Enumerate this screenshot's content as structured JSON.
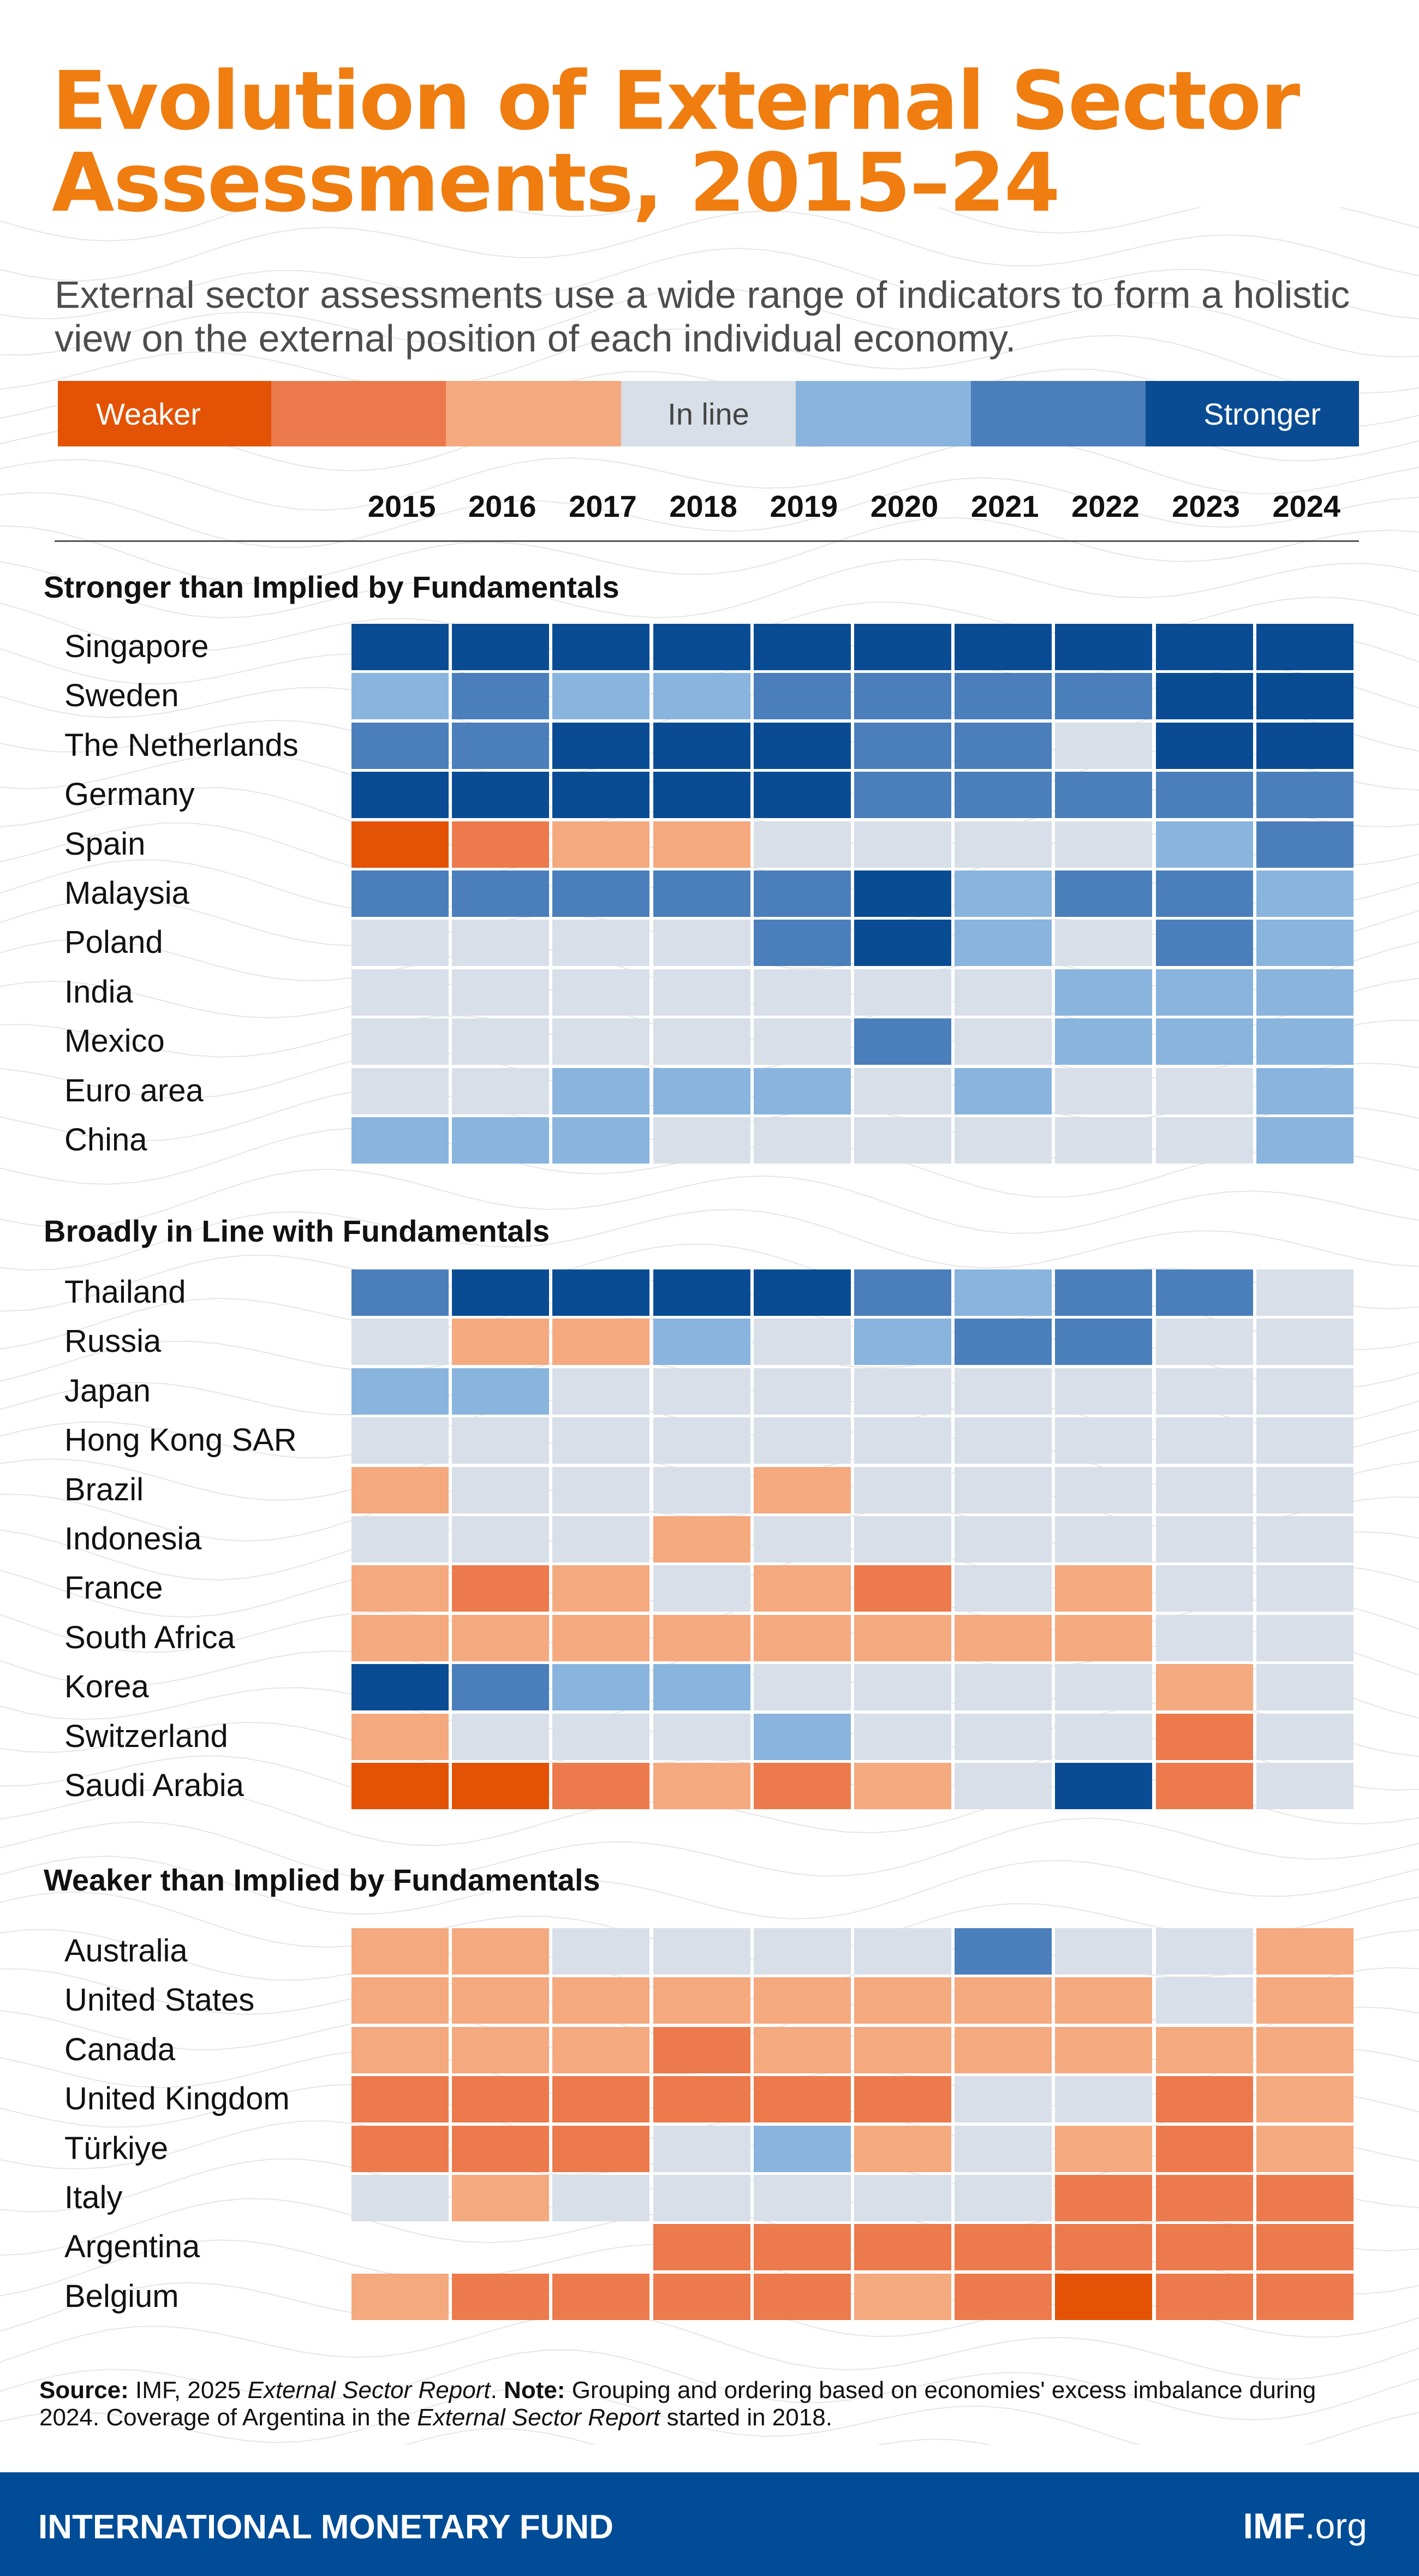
{
  "title_line1": "Evolution of External Sector",
  "title_line2": "Assessments, 2015–24",
  "subtitle": "External sector assessments use a wide range of indicators to form a holistic view on the external position of each individual economy.",
  "legend": {
    "weaker_label": "Weaker",
    "inline_label": "In line",
    "stronger_label": "Stronger",
    "colors": [
      "#e35205",
      "#ec7a4c",
      "#f4a97f",
      "#d8dfe8",
      "#89b4dd",
      "#4a7fbb",
      "#0a4c94"
    ]
  },
  "chart_data": {
    "type": "heatmap",
    "title": "Evolution of External Sector Assessments, 2015–24",
    "scale": "-3 = much weaker, 0 = in line, +3 = much stronger; null = not covered",
    "x": [
      "2015",
      "2016",
      "2017",
      "2018",
      "2019",
      "2020",
      "2021",
      "2022",
      "2023",
      "2024"
    ],
    "groups": [
      {
        "heading": "Stronger than Implied by Fundamentals",
        "rows": [
          {
            "name": "Singapore",
            "values": [
              3,
              3,
              3,
              3,
              3,
              3,
              3,
              3,
              3,
              3
            ]
          },
          {
            "name": "Sweden",
            "values": [
              1,
              2,
              1,
              1,
              2,
              2,
              2,
              2,
              3,
              3
            ]
          },
          {
            "name": "The Netherlands",
            "values": [
              2,
              2,
              3,
              3,
              3,
              2,
              2,
              0,
              3,
              3
            ]
          },
          {
            "name": "Germany",
            "values": [
              3,
              3,
              3,
              3,
              3,
              2,
              2,
              2,
              2,
              2
            ]
          },
          {
            "name": "Spain",
            "values": [
              -3,
              -2,
              -1,
              -1,
              0,
              0,
              0,
              0,
              1,
              2
            ]
          },
          {
            "name": "Malaysia",
            "values": [
              2,
              2,
              2,
              2,
              2,
              3,
              1,
              2,
              2,
              1
            ]
          },
          {
            "name": "Poland",
            "values": [
              0,
              0,
              0,
              0,
              2,
              3,
              1,
              0,
              2,
              1
            ]
          },
          {
            "name": "India",
            "values": [
              0,
              0,
              0,
              0,
              0,
              0,
              0,
              1,
              1,
              1
            ]
          },
          {
            "name": "Mexico",
            "values": [
              0,
              0,
              0,
              0,
              0,
              2,
              0,
              1,
              1,
              1
            ]
          },
          {
            "name": "Euro area",
            "values": [
              0,
              0,
              1,
              1,
              1,
              0,
              1,
              0,
              0,
              1
            ]
          },
          {
            "name": "China",
            "values": [
              1,
              1,
              1,
              0,
              0,
              0,
              0,
              0,
              0,
              1
            ]
          }
        ]
      },
      {
        "heading": "Broadly in Line with Fundamentals",
        "rows": [
          {
            "name": "Thailand",
            "values": [
              2,
              3,
              3,
              3,
              3,
              2,
              1,
              2,
              2,
              0
            ]
          },
          {
            "name": "Russia",
            "values": [
              0,
              -1,
              -1,
              1,
              0,
              1,
              2,
              2,
              0,
              0
            ]
          },
          {
            "name": "Japan",
            "values": [
              1,
              1,
              0,
              0,
              0,
              0,
              0,
              0,
              0,
              0
            ]
          },
          {
            "name": "Hong Kong SAR",
            "values": [
              0,
              0,
              0,
              0,
              0,
              0,
              0,
              0,
              0,
              0
            ]
          },
          {
            "name": "Brazil",
            "values": [
              -1,
              0,
              0,
              0,
              -1,
              0,
              0,
              0,
              0,
              0
            ]
          },
          {
            "name": "Indonesia",
            "values": [
              0,
              0,
              0,
              -1,
              0,
              0,
              0,
              0,
              0,
              0
            ]
          },
          {
            "name": "France",
            "values": [
              -1,
              -2,
              -1,
              0,
              -1,
              -2,
              0,
              -1,
              0,
              0
            ]
          },
          {
            "name": "South Africa",
            "values": [
              -1,
              -1,
              -1,
              -1,
              -1,
              -1,
              -1,
              -1,
              0,
              0
            ]
          },
          {
            "name": "Korea",
            "values": [
              3,
              2,
              1,
              1,
              0,
              0,
              0,
              0,
              -1,
              0
            ]
          },
          {
            "name": "Switzerland",
            "values": [
              -1,
              0,
              0,
              0,
              1,
              0,
              0,
              0,
              -2,
              0
            ]
          },
          {
            "name": "Saudi Arabia",
            "values": [
              -3,
              -3,
              -2,
              -1,
              -2,
              -1,
              0,
              3,
              -2,
              0
            ]
          }
        ]
      },
      {
        "heading": "Weaker than Implied by Fundamentals",
        "rows": [
          {
            "name": "Australia",
            "values": [
              -1,
              -1,
              0,
              0,
              0,
              0,
              2,
              0,
              0,
              -1
            ]
          },
          {
            "name": "United States",
            "values": [
              -1,
              -1,
              -1,
              -1,
              -1,
              -1,
              -1,
              -1,
              0,
              -1
            ]
          },
          {
            "name": "Canada",
            "values": [
              -1,
              -1,
              -1,
              -2,
              -1,
              -1,
              -1,
              -1,
              -1,
              -1
            ]
          },
          {
            "name": "United Kingdom",
            "values": [
              -2,
              -2,
              -2,
              -2,
              -2,
              -2,
              0,
              0,
              -2,
              -1
            ]
          },
          {
            "name": "Türkiye",
            "values": [
              -2,
              -2,
              -2,
              0,
              1,
              -1,
              0,
              -1,
              -2,
              -1
            ]
          },
          {
            "name": "Italy",
            "values": [
              0,
              -1,
              0,
              0,
              0,
              0,
              0,
              -2,
              -2,
              -2
            ]
          },
          {
            "name": "Argentina",
            "values": [
              null,
              null,
              null,
              -2,
              -2,
              -2,
              -2,
              -2,
              -2,
              -2
            ]
          },
          {
            "name": "Belgium",
            "values": [
              -1,
              -2,
              -2,
              -2,
              -2,
              -1,
              -2,
              -3,
              -2,
              -2
            ]
          }
        ]
      }
    ]
  },
  "source": {
    "source_label": "Source:",
    "source_pre": " IMF, 2025 ",
    "source_italic": "External Sector Report",
    "source_post": ". ",
    "note_label": "Note:",
    "note_pre": " Grouping and ordering based on economies' excess imbalance during 2024. Coverage of Argentina in the ",
    "note_italic": "External Sector Report",
    "note_post": " started in 2018."
  },
  "footer": {
    "org": "INTERNATIONAL MONETARY FUND",
    "site_bold": "IMF",
    "site_rest": ".org"
  }
}
